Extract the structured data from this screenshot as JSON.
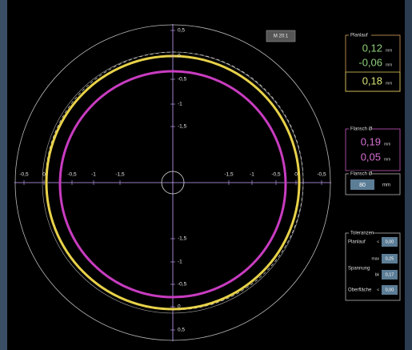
{
  "plot": {
    "y_axis_labels_top": [
      "0,5",
      "0",
      "-0,5",
      "-1",
      "-1,5"
    ],
    "y_axis_labels_bottom": [
      "-1,5",
      "-1",
      "-0,5",
      "0",
      "0,5"
    ],
    "x_axis_labels_left": [
      "-0,5",
      "0",
      "-0,5",
      "-1",
      "-1,5"
    ],
    "x_axis_labels_right": [
      "-1,5",
      "-1",
      "-0,5",
      "0",
      "-0,5"
    ]
  },
  "zoom_button": "M 20:1",
  "planlauf": {
    "title": "Planlauf",
    "max": "0,12",
    "min": "-0,06",
    "total": "0,18",
    "unit": "mm"
  },
  "flansch": {
    "title": "Flansch Ø",
    "max": "0,19",
    "min": "0,05",
    "unit": "mm"
  },
  "flansch_input": {
    "title": "Flansch Ø",
    "value": "80",
    "unit": "mm"
  },
  "toleranzen": {
    "title": "Toleranzen",
    "rows": [
      {
        "label": "Planlauf",
        "op": "<",
        "value": "0,00"
      },
      {
        "label": "",
        "op": "max",
        "value": "0,25"
      },
      {
        "label": "Spannung",
        "op": "bk",
        "value": "0,17"
      },
      {
        "label": "Oberfläche",
        "op": "<",
        "value": "0,00"
      }
    ]
  }
}
